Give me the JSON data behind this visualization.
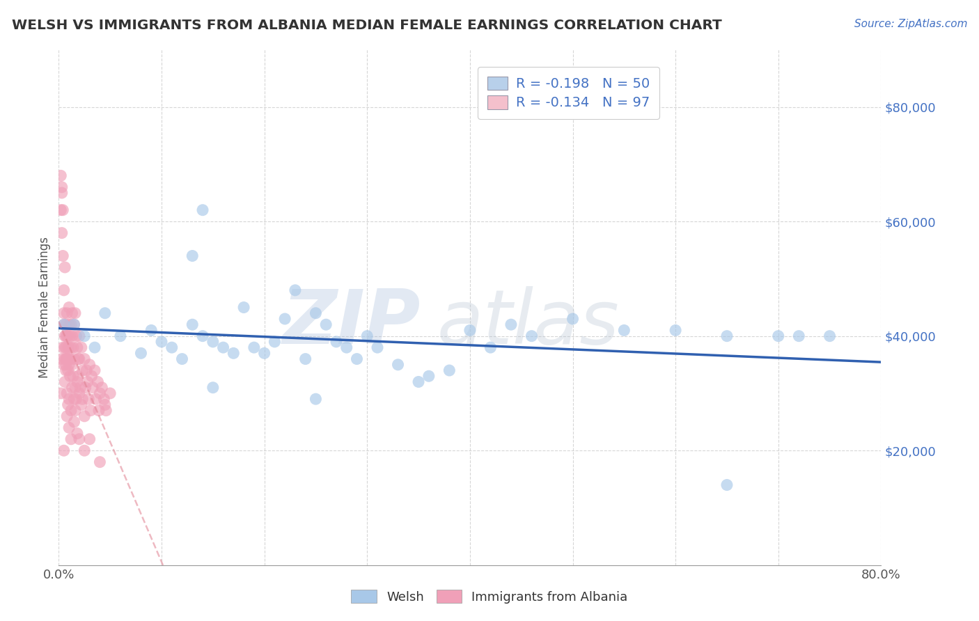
{
  "title": "WELSH VS IMMIGRANTS FROM ALBANIA MEDIAN FEMALE EARNINGS CORRELATION CHART",
  "source_text": "Source: ZipAtlas.com",
  "ylabel": "Median Female Earnings",
  "xlim": [
    0.0,
    0.8
  ],
  "ylim": [
    0,
    90000
  ],
  "yticks": [
    20000,
    40000,
    60000,
    80000
  ],
  "ytick_labels": [
    "$20,000",
    "$40,000",
    "$60,000",
    "$80,000"
  ],
  "xticks": [
    0.0,
    0.1,
    0.2,
    0.3,
    0.4,
    0.5,
    0.6,
    0.7,
    0.8
  ],
  "xtick_labels": [
    "0.0%",
    "",
    "",
    "",
    "",
    "",
    "",
    "",
    "80.0%"
  ],
  "welsh_color": "#a8c8e8",
  "albania_color": "#f0a0b8",
  "welsh_line_color": "#3060b0",
  "albania_line_color": "#e08090",
  "title_color": "#333333",
  "source_color": "#4472c4",
  "watermark_zip_color": "#a0b8d8",
  "watermark_atlas_color": "#b0c0d0",
  "legend_box_color_1": "#b8d0ea",
  "legend_box_color_2": "#f4c0cc",
  "legend_text_color": "#4472c4",
  "welsh_scatter": [
    [
      0.015,
      42000
    ],
    [
      0.025,
      40000
    ],
    [
      0.035,
      38000
    ],
    [
      0.045,
      44000
    ],
    [
      0.06,
      40000
    ],
    [
      0.08,
      37000
    ],
    [
      0.09,
      41000
    ],
    [
      0.1,
      39000
    ],
    [
      0.11,
      38000
    ],
    [
      0.12,
      36000
    ],
    [
      0.13,
      42000
    ],
    [
      0.14,
      40000
    ],
    [
      0.15,
      39000
    ],
    [
      0.16,
      38000
    ],
    [
      0.17,
      37000
    ],
    [
      0.18,
      45000
    ],
    [
      0.19,
      38000
    ],
    [
      0.2,
      37000
    ],
    [
      0.21,
      39000
    ],
    [
      0.22,
      43000
    ],
    [
      0.14,
      62000
    ],
    [
      0.13,
      54000
    ],
    [
      0.23,
      48000
    ],
    [
      0.24,
      36000
    ],
    [
      0.25,
      44000
    ],
    [
      0.26,
      42000
    ],
    [
      0.27,
      39000
    ],
    [
      0.28,
      38000
    ],
    [
      0.29,
      36000
    ],
    [
      0.3,
      40000
    ],
    [
      0.31,
      38000
    ],
    [
      0.33,
      35000
    ],
    [
      0.35,
      32000
    ],
    [
      0.36,
      33000
    ],
    [
      0.38,
      34000
    ],
    [
      0.4,
      41000
    ],
    [
      0.42,
      38000
    ],
    [
      0.44,
      42000
    ],
    [
      0.46,
      40000
    ],
    [
      0.5,
      43000
    ],
    [
      0.55,
      41000
    ],
    [
      0.6,
      41000
    ],
    [
      0.65,
      40000
    ],
    [
      0.7,
      40000
    ],
    [
      0.72,
      40000
    ],
    [
      0.25,
      29000
    ],
    [
      0.15,
      31000
    ],
    [
      0.65,
      14000
    ],
    [
      0.005,
      42000
    ],
    [
      0.75,
      40000
    ]
  ],
  "albania_scatter": [
    [
      0.002,
      68000
    ],
    [
      0.003,
      65000
    ],
    [
      0.002,
      62000
    ],
    [
      0.003,
      58000
    ],
    [
      0.004,
      54000
    ],
    [
      0.004,
      62000
    ],
    [
      0.003,
      66000
    ],
    [
      0.005,
      42000
    ],
    [
      0.005,
      48000
    ],
    [
      0.005,
      44000
    ],
    [
      0.006,
      52000
    ],
    [
      0.006,
      40000
    ],
    [
      0.006,
      36000
    ],
    [
      0.006,
      32000
    ],
    [
      0.007,
      42000
    ],
    [
      0.007,
      38000
    ],
    [
      0.007,
      35000
    ],
    [
      0.007,
      36000
    ],
    [
      0.007,
      34000
    ],
    [
      0.008,
      44000
    ],
    [
      0.008,
      40000
    ],
    [
      0.008,
      36000
    ],
    [
      0.008,
      30000
    ],
    [
      0.008,
      26000
    ],
    [
      0.009,
      38000
    ],
    [
      0.009,
      34000
    ],
    [
      0.009,
      28000
    ],
    [
      0.01,
      45000
    ],
    [
      0.01,
      42000
    ],
    [
      0.01,
      38000
    ],
    [
      0.01,
      35000
    ],
    [
      0.01,
      29000
    ],
    [
      0.01,
      24000
    ],
    [
      0.011,
      40000
    ],
    [
      0.011,
      36000
    ],
    [
      0.011,
      33000
    ],
    [
      0.012,
      42000
    ],
    [
      0.012,
      38000
    ],
    [
      0.012,
      27000
    ],
    [
      0.012,
      22000
    ],
    [
      0.013,
      44000
    ],
    [
      0.013,
      40000
    ],
    [
      0.013,
      35000
    ],
    [
      0.013,
      31000
    ],
    [
      0.014,
      38000
    ],
    [
      0.014,
      33000
    ],
    [
      0.015,
      42000
    ],
    [
      0.015,
      36000
    ],
    [
      0.015,
      29000
    ],
    [
      0.015,
      25000
    ],
    [
      0.016,
      44000
    ],
    [
      0.016,
      31000
    ],
    [
      0.016,
      27000
    ],
    [
      0.017,
      40000
    ],
    [
      0.017,
      29000
    ],
    [
      0.018,
      38000
    ],
    [
      0.018,
      32000
    ],
    [
      0.018,
      23000
    ],
    [
      0.019,
      36000
    ],
    [
      0.019,
      33000
    ],
    [
      0.02,
      40000
    ],
    [
      0.02,
      36000
    ],
    [
      0.02,
      30000
    ],
    [
      0.02,
      22000
    ],
    [
      0.021,
      31000
    ],
    [
      0.022,
      38000
    ],
    [
      0.022,
      28000
    ],
    [
      0.023,
      34000
    ],
    [
      0.023,
      29000
    ],
    [
      0.025,
      36000
    ],
    [
      0.025,
      26000
    ],
    [
      0.025,
      20000
    ],
    [
      0.026,
      31000
    ],
    [
      0.027,
      34000
    ],
    [
      0.028,
      32000
    ],
    [
      0.029,
      29000
    ],
    [
      0.03,
      35000
    ],
    [
      0.03,
      22000
    ],
    [
      0.031,
      27000
    ],
    [
      0.032,
      33000
    ],
    [
      0.033,
      31000
    ],
    [
      0.035,
      34000
    ],
    [
      0.036,
      29000
    ],
    [
      0.038,
      32000
    ],
    [
      0.039,
      27000
    ],
    [
      0.04,
      30000
    ],
    [
      0.04,
      18000
    ],
    [
      0.042,
      31000
    ],
    [
      0.044,
      29000
    ],
    [
      0.045,
      28000
    ],
    [
      0.046,
      27000
    ],
    [
      0.05,
      30000
    ],
    [
      0.002,
      30000
    ],
    [
      0.003,
      36000
    ],
    [
      0.004,
      38000
    ],
    [
      0.005,
      35000
    ],
    [
      0.006,
      38000
    ],
    [
      0.007,
      40000
    ],
    [
      0.008,
      36000
    ],
    [
      0.009,
      40000
    ],
    [
      0.01,
      36000
    ],
    [
      0.005,
      20000
    ]
  ]
}
